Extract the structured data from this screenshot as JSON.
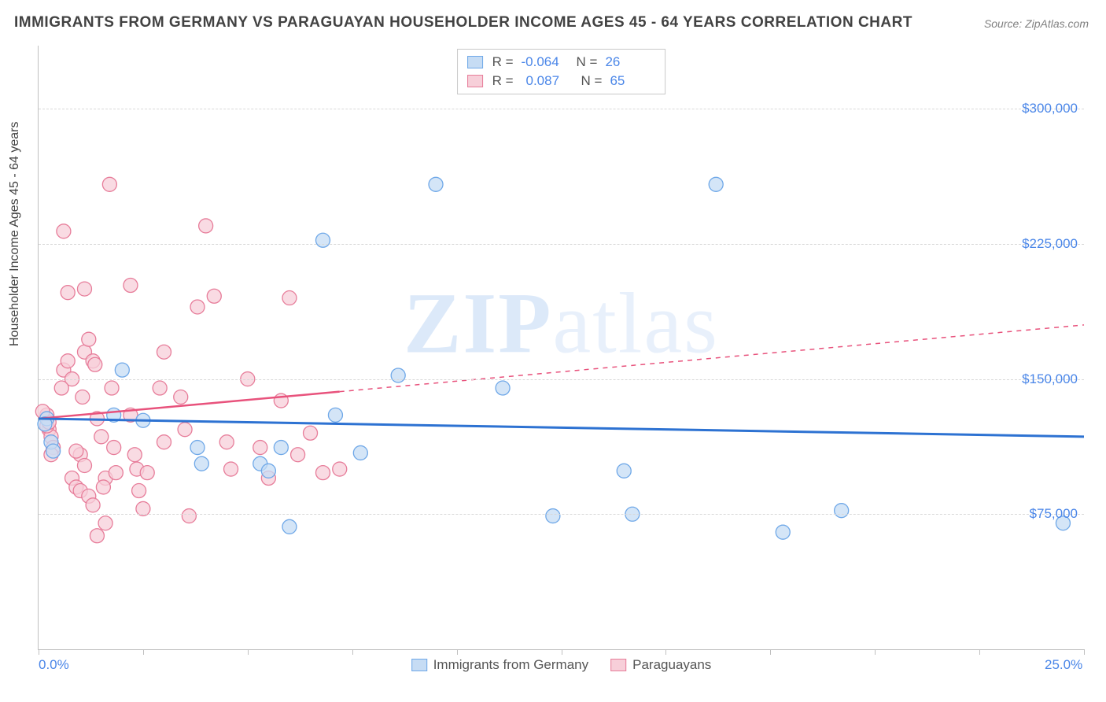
{
  "title": "IMMIGRANTS FROM GERMANY VS PARAGUAYAN HOUSEHOLDER INCOME AGES 45 - 64 YEARS CORRELATION CHART",
  "source": "Source: ZipAtlas.com",
  "ylabel": "Householder Income Ages 45 - 64 years",
  "watermark_bold": "ZIP",
  "watermark_rest": "atlas",
  "chart": {
    "type": "scatter",
    "xlim": [
      0,
      25
    ],
    "ylim": [
      0,
      335000
    ],
    "x_ticks_pct": [
      0,
      10,
      20,
      30,
      40,
      50,
      60,
      70,
      80,
      90,
      100
    ],
    "x_axis_labels": [
      {
        "pos_pct": 0,
        "text": "0.0%"
      },
      {
        "pos_pct": 100,
        "text": "25.0%"
      }
    ],
    "y_gridlines": [
      75000,
      150000,
      225000,
      300000
    ],
    "y_tick_labels": [
      "$75,000",
      "$150,000",
      "$225,000",
      "$300,000"
    ],
    "background_color": "#ffffff",
    "grid_color": "#d8d8d8",
    "series": [
      {
        "name": "Immigrants from Germany",
        "fill": "#c6dcf4",
        "stroke": "#6fa8e8",
        "r_value": "-0.064",
        "n_value": "26",
        "marker_r": 9,
        "trend": {
          "x1": 0,
          "y1": 128000,
          "x2": 25,
          "y2": 118000,
          "solid_until_x": 25,
          "color": "#2d72d2",
          "width": 3
        },
        "points": [
          [
            0.2,
            128000
          ],
          [
            0.3,
            115000
          ],
          [
            0.35,
            110000
          ],
          [
            0.15,
            125000
          ],
          [
            1.8,
            130000
          ],
          [
            2.0,
            155000
          ],
          [
            2.5,
            127000
          ],
          [
            3.8,
            112000
          ],
          [
            3.9,
            103000
          ],
          [
            5.3,
            103000
          ],
          [
            5.5,
            99000
          ],
          [
            5.8,
            112000
          ],
          [
            6.0,
            68000
          ],
          [
            6.8,
            227000
          ],
          [
            7.1,
            130000
          ],
          [
            7.7,
            109000
          ],
          [
            8.6,
            152000
          ],
          [
            9.5,
            258000
          ],
          [
            11.1,
            145000
          ],
          [
            12.3,
            74000
          ],
          [
            14.0,
            99000
          ],
          [
            14.2,
            75000
          ],
          [
            16.2,
            258000
          ],
          [
            17.8,
            65000
          ],
          [
            19.2,
            77000
          ],
          [
            24.5,
            70000
          ]
        ]
      },
      {
        "name": "Paraguayans",
        "fill": "#f7cfd9",
        "stroke": "#e77d9a",
        "r_value": "0.087",
        "n_value": "65",
        "marker_r": 9,
        "trend": {
          "x1": 0,
          "y1": 128000,
          "x2": 25,
          "y2": 180000,
          "solid_until_x": 7.2,
          "color": "#e8527c",
          "width": 2.5
        },
        "points": [
          [
            0.2,
            130000
          ],
          [
            0.25,
            122000
          ],
          [
            0.3,
            118000
          ],
          [
            0.35,
            112000
          ],
          [
            0.3,
            108000
          ],
          [
            0.2,
            124000
          ],
          [
            0.25,
            126000
          ],
          [
            0.1,
            132000
          ],
          [
            0.6,
            155000
          ],
          [
            0.7,
            160000
          ],
          [
            0.8,
            150000
          ],
          [
            0.55,
            145000
          ],
          [
            0.6,
            232000
          ],
          [
            0.7,
            198000
          ],
          [
            0.8,
            95000
          ],
          [
            0.9,
            90000
          ],
          [
            1.0,
            88000
          ],
          [
            1.05,
            140000
          ],
          [
            1.1,
            165000
          ],
          [
            1.1,
            200000
          ],
          [
            1.2,
            172000
          ],
          [
            1.3,
            160000
          ],
          [
            1.35,
            158000
          ],
          [
            1.4,
            128000
          ],
          [
            1.5,
            118000
          ],
          [
            1.6,
            95000
          ],
          [
            1.55,
            90000
          ],
          [
            1.7,
            258000
          ],
          [
            1.75,
            145000
          ],
          [
            1.8,
            112000
          ],
          [
            1.85,
            98000
          ],
          [
            1.4,
            63000
          ],
          [
            1.6,
            70000
          ],
          [
            1.2,
            85000
          ],
          [
            1.3,
            80000
          ],
          [
            1.0,
            108000
          ],
          [
            1.1,
            102000
          ],
          [
            0.9,
            110000
          ],
          [
            2.2,
            202000
          ],
          [
            2.2,
            130000
          ],
          [
            2.3,
            108000
          ],
          [
            2.35,
            100000
          ],
          [
            2.4,
            88000
          ],
          [
            2.5,
            78000
          ],
          [
            2.6,
            98000
          ],
          [
            2.9,
            145000
          ],
          [
            3.0,
            165000
          ],
          [
            3.0,
            115000
          ],
          [
            3.4,
            140000
          ],
          [
            3.5,
            122000
          ],
          [
            3.6,
            74000
          ],
          [
            3.8,
            190000
          ],
          [
            4.0,
            235000
          ],
          [
            4.2,
            196000
          ],
          [
            4.5,
            115000
          ],
          [
            4.6,
            100000
          ],
          [
            5.0,
            150000
          ],
          [
            5.3,
            112000
          ],
          [
            5.5,
            95000
          ],
          [
            5.8,
            138000
          ],
          [
            6.0,
            195000
          ],
          [
            6.2,
            108000
          ],
          [
            6.5,
            120000
          ],
          [
            6.8,
            98000
          ],
          [
            7.2,
            100000
          ]
        ]
      }
    ]
  },
  "legend_bottom": [
    {
      "label": "Immigrants from Germany",
      "fill": "#c6dcf4",
      "stroke": "#6fa8e8"
    },
    {
      "label": "Paraguayans",
      "fill": "#f7cfd9",
      "stroke": "#e77d9a"
    }
  ]
}
